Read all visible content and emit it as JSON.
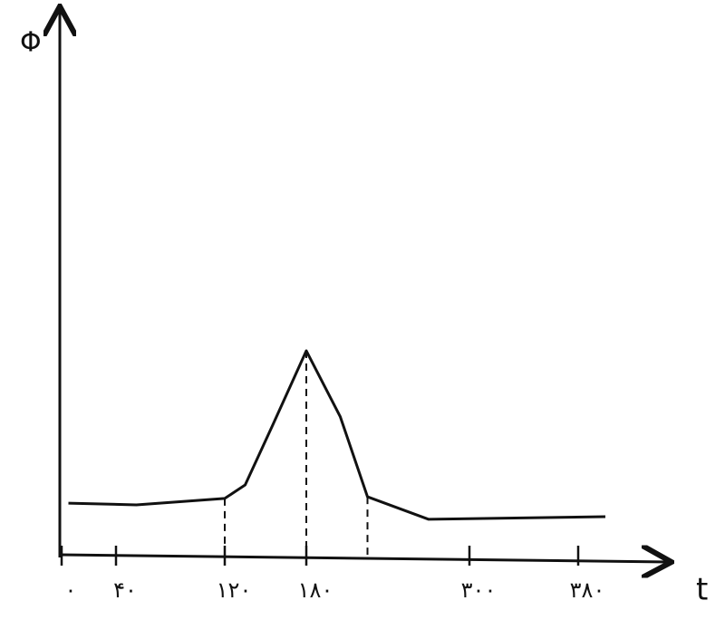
{
  "chart_data": {
    "type": "line",
    "x_label": "t",
    "y_label": "Φ",
    "x": [
      5,
      55,
      120,
      135,
      155,
      180,
      205,
      225,
      270,
      400
    ],
    "series": [
      {
        "color": "#111111",
        "values": [
          0.96,
          0.93,
          1.05,
          1.3,
          2.4,
          3.8,
          2.57,
          1.08,
          0.66,
          0.71
        ]
      }
    ],
    "xlim": [
      0,
      440
    ],
    "ylim": [
      0,
      10
    ],
    "xticks": [
      {
        "value": 0,
        "label": "۰"
      },
      {
        "value": 40,
        "label": "۴۰"
      },
      {
        "value": 120,
        "label": "۱۲۰"
      },
      {
        "value": 180,
        "label": "۱۸۰"
      },
      {
        "value": 300,
        "label": "۳۰۰"
      },
      {
        "value": 380,
        "label": "۳۸۰"
      }
    ]
  }
}
